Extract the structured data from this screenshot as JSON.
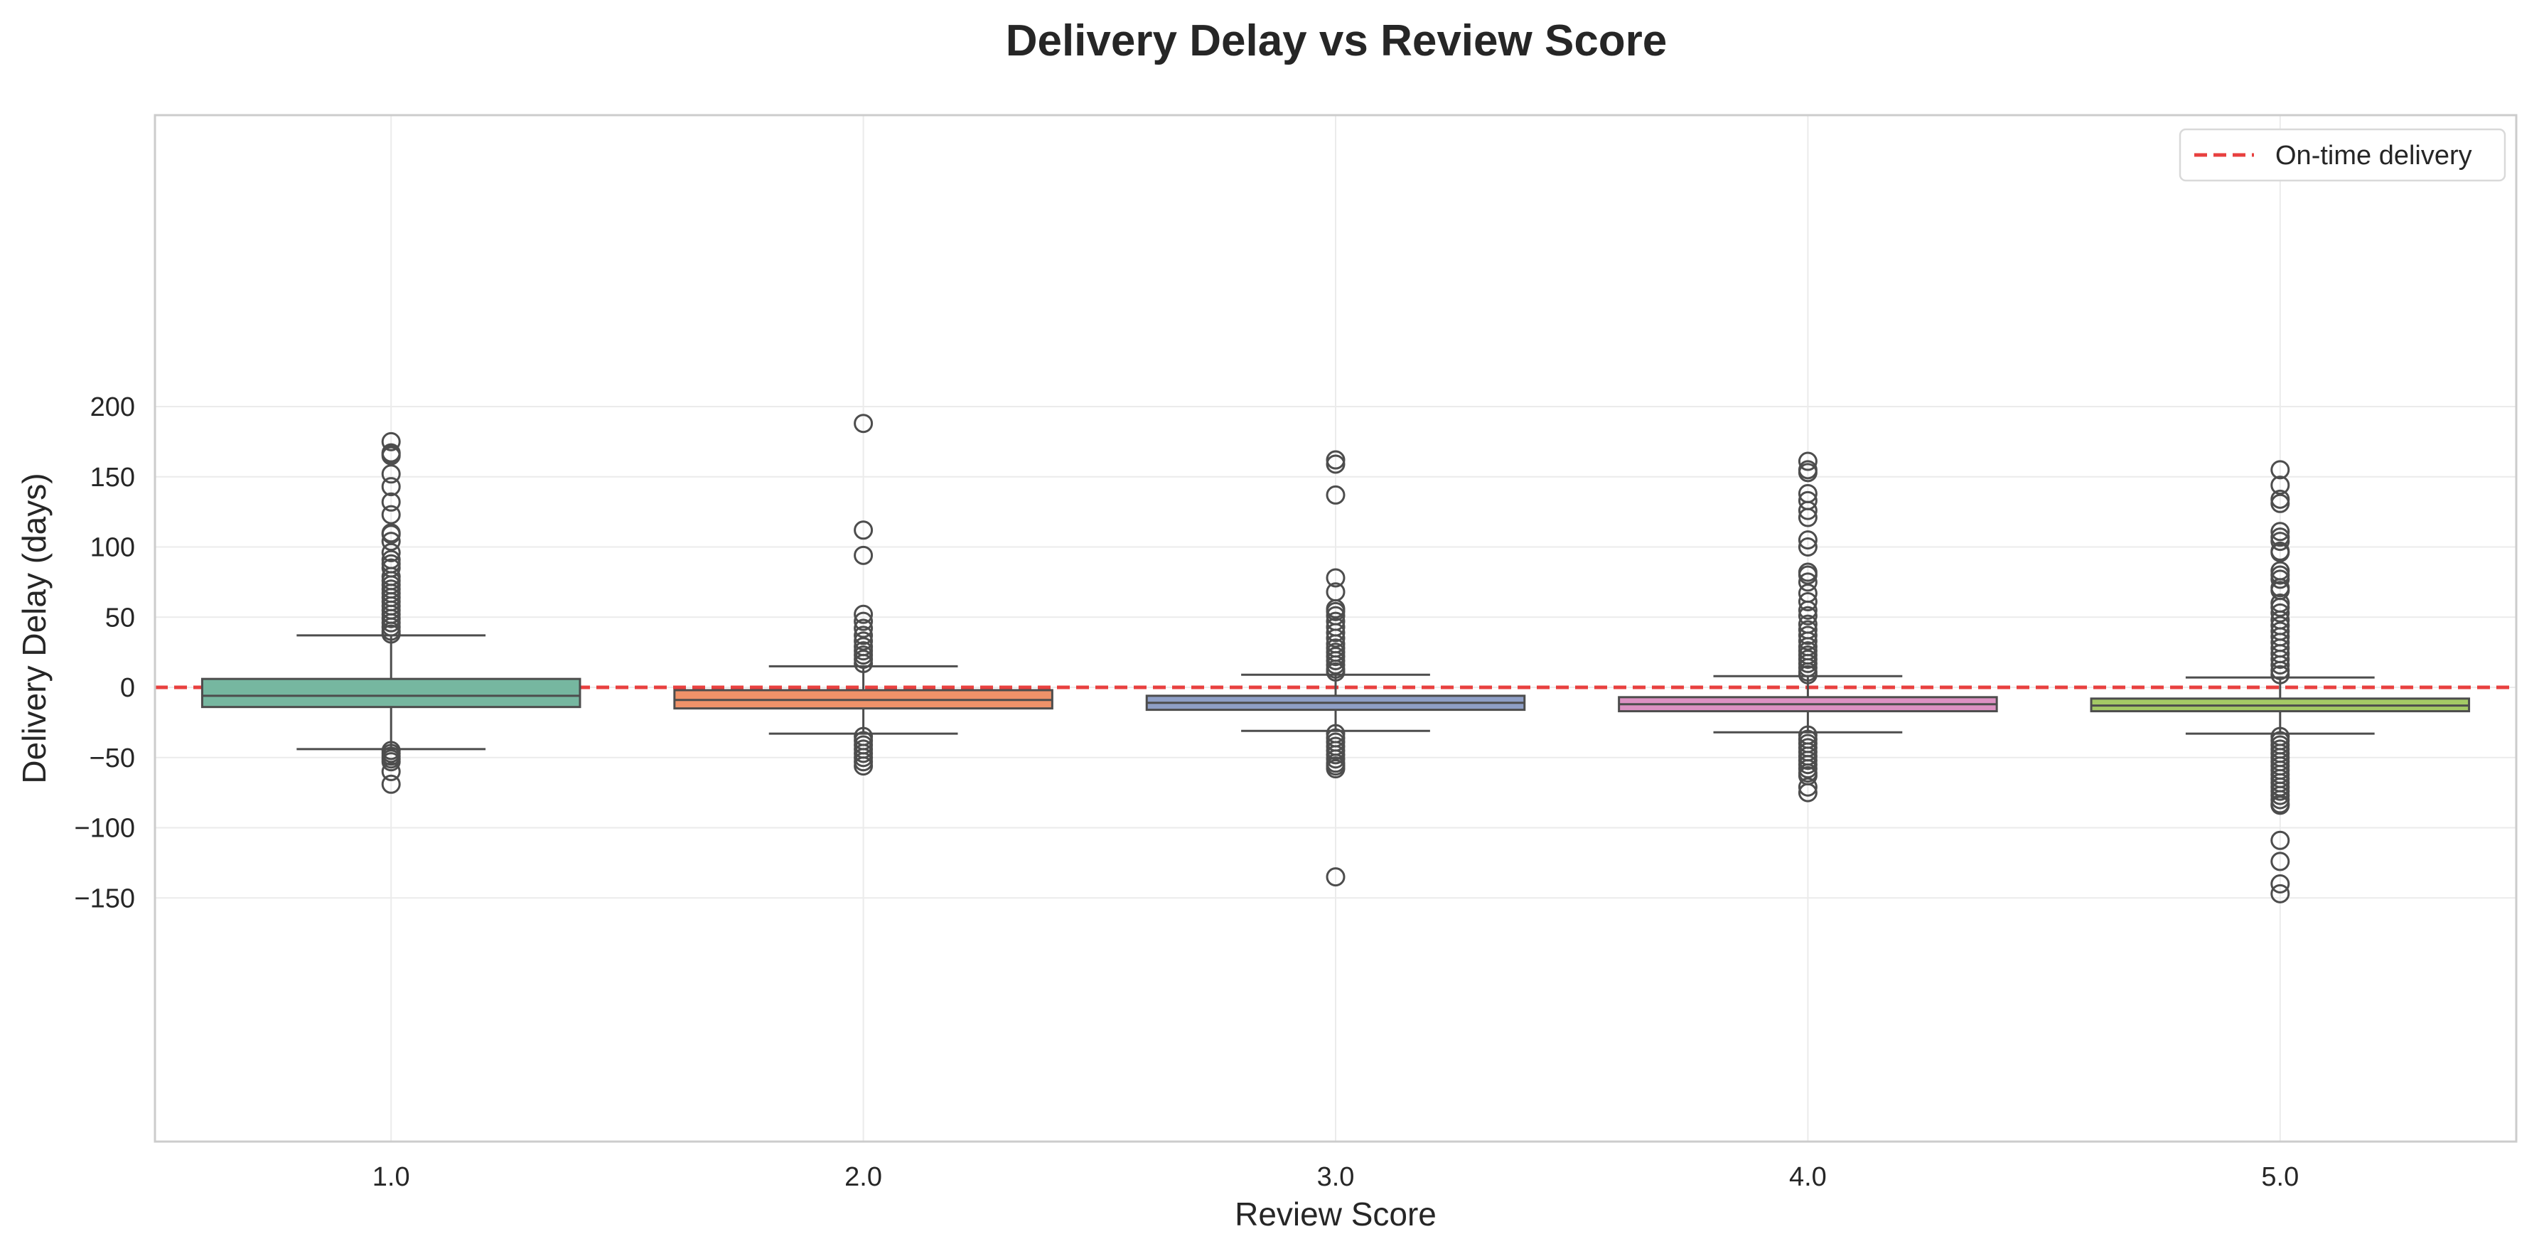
{
  "chart_data": {
    "type": "box",
    "title": "Delivery Delay vs Review Score",
    "xlabel": "Review Score",
    "ylabel": "Delivery Delay (days)",
    "categories": [
      "1.0",
      "2.0",
      "3.0",
      "4.0",
      "5.0"
    ],
    "ylim": [
      -163,
      205
    ],
    "yticks": [
      200,
      150,
      100,
      50,
      0,
      -50,
      -100,
      -150
    ],
    "ytick_labels": [
      "200",
      "150",
      "100",
      "50",
      "0",
      "−50",
      "−100",
      "−150"
    ],
    "grid": true,
    "reference_line": {
      "value": 0,
      "label": "On-time delivery",
      "color": "#e8403f",
      "style": "dashed"
    },
    "legend": {
      "position": "top-right",
      "entries": [
        "On-time delivery"
      ]
    },
    "boxes": [
      {
        "category": "1.0",
        "color": "#76b7a0",
        "q1": -14,
        "median": -6,
        "q3": 6,
        "whisker_low": -44,
        "whisker_high": 37,
        "outliers": [
          175,
          167,
          166,
          165,
          152,
          143,
          132,
          123,
          110,
          109,
          104,
          96,
          91,
          88,
          85,
          79,
          76,
          73,
          70,
          67,
          64,
          61,
          58,
          55,
          52,
          49,
          46,
          43,
          40,
          38,
          -45,
          -47,
          -49,
          -51,
          -53,
          -60,
          -69
        ]
      },
      {
        "category": "2.0",
        "color": "#ef9269",
        "q1": -15,
        "median": -9,
        "q3": -2,
        "whisker_low": -33,
        "whisker_high": 15,
        "outliers": [
          188,
          112,
          94,
          52,
          47,
          42,
          37,
          33,
          29,
          26,
          23,
          20,
          17,
          -35,
          -38,
          -41,
          -44,
          -47,
          -50,
          -53,
          -56
        ]
      },
      {
        "category": "3.0",
        "color": "#8f9fc6",
        "q1": -16,
        "median": -11,
        "q3": -6,
        "whisker_low": -31,
        "whisker_high": 9,
        "outliers": [
          162,
          159,
          137,
          78,
          68,
          56,
          54,
          51,
          47,
          43,
          39,
          35,
          31,
          28,
          25,
          22,
          19,
          16,
          13,
          11,
          -33,
          -36,
          -39,
          -42,
          -45,
          -48,
          -51,
          -54,
          -56,
          -58,
          -135
        ]
      },
      {
        "category": "4.0",
        "color": "#dc91c2",
        "q1": -17,
        "median": -12,
        "q3": -7,
        "whisker_low": -32,
        "whisker_high": 8,
        "outliers": [
          161,
          155,
          153,
          138,
          133,
          126,
          121,
          105,
          100,
          82,
          80,
          75,
          67,
          61,
          55,
          51,
          45,
          41,
          37,
          33,
          29,
          26,
          23,
          20,
          17,
          14,
          11,
          9,
          -34,
          -37,
          -40,
          -43,
          -46,
          -49,
          -52,
          -55,
          -58,
          -61,
          -63,
          -71,
          -75
        ]
      },
      {
        "category": "5.0",
        "color": "#a4c965",
        "q1": -17,
        "median": -13,
        "q3": -8,
        "whisker_low": -33,
        "whisker_high": 7,
        "outliers": [
          155,
          144,
          134,
          131,
          111,
          107,
          104,
          97,
          96,
          83,
          80,
          77,
          71,
          69,
          60,
          57,
          53,
          48,
          44,
          40,
          36,
          32,
          28,
          24,
          20,
          16,
          12,
          9,
          -35,
          -38,
          -41,
          -44,
          -47,
          -50,
          -53,
          -56,
          -59,
          -62,
          -65,
          -68,
          -71,
          -74,
          -77,
          -80,
          -83,
          -84,
          -109,
          -124,
          -140,
          -147
        ]
      }
    ]
  }
}
